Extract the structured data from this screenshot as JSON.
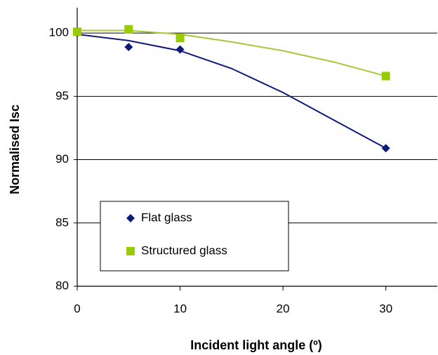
{
  "chart_data": {
    "type": "scatter",
    "x_label": "Incident light angle (º)",
    "y_label": "Normalised Isc",
    "xlim": [
      0,
      35
    ],
    "xticks": [
      0,
      10,
      20,
      30
    ],
    "ylim": [
      80,
      102
    ],
    "yticks": [
      80,
      85,
      90,
      95,
      100
    ],
    "grid": true,
    "legend": "lower-left",
    "series": [
      {
        "name": "Flat glass",
        "color": "#0d1a7a",
        "marker": "diamond",
        "x": [
          0,
          5,
          10,
          30
        ],
        "values": [
          100,
          98.9,
          98.7,
          90.9
        ],
        "trendline": {
          "color": "#0d1a7a",
          "x": [
            0,
            5,
            10,
            15,
            20,
            25,
            30
          ],
          "values": [
            99.9,
            99.4,
            98.6,
            97.2,
            95.3,
            93.1,
            90.9
          ]
        }
      },
      {
        "name": "Structured glass",
        "color": "#99cc00",
        "marker": "square",
        "x": [
          0,
          5,
          10,
          30
        ],
        "values": [
          100.1,
          100.3,
          99.6,
          96.6
        ],
        "trendline": {
          "color": "#a3c83a",
          "x": [
            0,
            5,
            10,
            15,
            20,
            25,
            30
          ],
          "values": [
            100.2,
            100.2,
            99.9,
            99.3,
            98.6,
            97.7,
            96.6
          ]
        }
      }
    ]
  }
}
